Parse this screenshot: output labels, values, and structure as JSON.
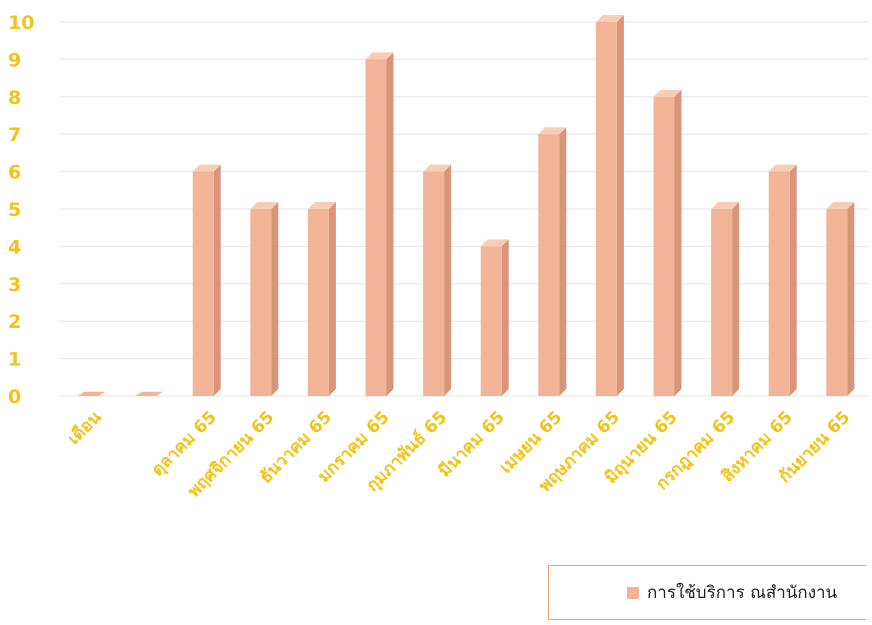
{
  "chart_data": {
    "type": "bar",
    "categories": [
      "เดือน",
      "",
      "ตุลาคม 65",
      "พฤศจิกายน 65",
      "ธันวาคม 65",
      "มกราคม 65",
      "กุมภาพันธ์ 65",
      "มีนาคม 65",
      "เมษยน 65",
      "พฤษภาคม 65",
      "มิถุนายน 65",
      "กรกฎาคม 65",
      "สิงหาคม 65",
      "กันยายน 65"
    ],
    "series": [
      {
        "name": "การใช้บริการ ณสำนักงาน",
        "values": [
          0,
          0,
          6,
          5,
          5,
          9,
          6,
          4,
          7,
          10,
          8,
          5,
          6,
          5
        ]
      }
    ],
    "ylim": [
      0,
      10
    ],
    "yticks": [
      "0",
      "1",
      "2",
      "3",
      "4",
      "5",
      "6",
      "7",
      "8",
      "9",
      "10"
    ],
    "grid": true,
    "legend_position": "bottom-right",
    "colors": {
      "bar_front": "#f2b496",
      "bar_side": "#d8957a",
      "bar_top": "#f8cdb5",
      "label": "#f2c318",
      "grid": "#e6e6e6"
    }
  }
}
